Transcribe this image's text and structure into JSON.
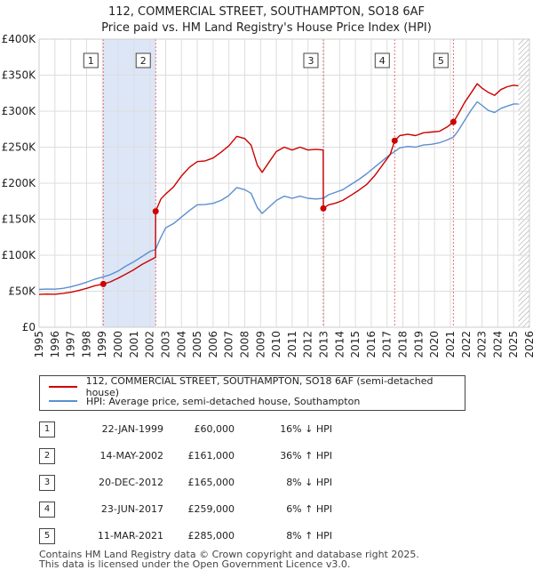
{
  "titles": {
    "line1": "112, COMMERCIAL STREET, SOUTHAMPTON, SO18 6AF",
    "line2": "Price paid vs. HM Land Registry's House Price Index (HPI)"
  },
  "chart_data": {
    "type": "line",
    "title": "112, COMMERCIAL STREET, SOUTHAMPTON, SO18 6AF — Price paid vs. HM Land Registry's House Price Index (HPI)",
    "xlabel": "",
    "ylabel": "",
    "xlim": [
      1995,
      2026
    ],
    "ylim": [
      0,
      400000
    ],
    "y_ticks": [
      0,
      50000,
      100000,
      150000,
      200000,
      250000,
      300000,
      350000,
      400000
    ],
    "y_tick_labels": [
      "£0",
      "£50K",
      "£100K",
      "£150K",
      "£200K",
      "£250K",
      "£300K",
      "£350K",
      "£400K"
    ],
    "x_ticks": [
      1995,
      1996,
      1997,
      1998,
      1999,
      2000,
      2001,
      2002,
      2003,
      2004,
      2005,
      2006,
      2007,
      2008,
      2009,
      2010,
      2011,
      2012,
      2013,
      2014,
      2015,
      2016,
      2017,
      2018,
      2019,
      2020,
      2021,
      2022,
      2023,
      2024,
      2025,
      2026
    ],
    "grid": true,
    "colors": {
      "property": "#cc0000",
      "hpi": "#5b8fd0",
      "shade": "#dde6f7",
      "vline": "#e07070",
      "hatch": "#999999"
    },
    "series": [
      {
        "name": "112, COMMERCIAL STREET, SOUTHAMPTON, SO18 6AF (semi-detached house)",
        "color": "#cc0000",
        "points": [
          [
            1995.0,
            45500
          ],
          [
            1995.5,
            46000
          ],
          [
            1996.0,
            45800
          ],
          [
            1996.5,
            47000
          ],
          [
            1997.0,
            48500
          ],
          [
            1997.5,
            51000
          ],
          [
            1998.0,
            54000
          ],
          [
            1998.5,
            57500
          ],
          [
            1999.06,
            60000
          ],
          [
            1999.5,
            63000
          ],
          [
            2000.0,
            68000
          ],
          [
            2000.5,
            74000
          ],
          [
            2001.0,
            80000
          ],
          [
            2001.5,
            87000
          ],
          [
            2002.0,
            93000
          ],
          [
            2002.36,
            97000
          ],
          [
            2002.37,
            161000
          ],
          [
            2002.7,
            178000
          ],
          [
            2003.0,
            185000
          ],
          [
            2003.5,
            195000
          ],
          [
            2004.0,
            210000
          ],
          [
            2004.5,
            222000
          ],
          [
            2005.0,
            230000
          ],
          [
            2005.5,
            231000
          ],
          [
            2006.0,
            235000
          ],
          [
            2006.5,
            243000
          ],
          [
            2007.0,
            252000
          ],
          [
            2007.5,
            265000
          ],
          [
            2008.0,
            262000
          ],
          [
            2008.4,
            253000
          ],
          [
            2008.8,
            225000
          ],
          [
            2009.1,
            215000
          ],
          [
            2009.5,
            228000
          ],
          [
            2010.0,
            244000
          ],
          [
            2010.5,
            250000
          ],
          [
            2011.0,
            246000
          ],
          [
            2011.5,
            250000
          ],
          [
            2012.0,
            246000
          ],
          [
            2012.5,
            247000
          ],
          [
            2012.96,
            246000
          ],
          [
            2012.97,
            165000
          ],
          [
            2013.3,
            170000
          ],
          [
            2013.7,
            172000
          ],
          [
            2014.2,
            176000
          ],
          [
            2014.7,
            183000
          ],
          [
            2015.2,
            190000
          ],
          [
            2015.7,
            198000
          ],
          [
            2016.2,
            210000
          ],
          [
            2016.7,
            225000
          ],
          [
            2017.2,
            240000
          ],
          [
            2017.48,
            259000
          ],
          [
            2017.8,
            266000
          ],
          [
            2018.3,
            268000
          ],
          [
            2018.8,
            266000
          ],
          [
            2019.3,
            270000
          ],
          [
            2019.8,
            271000
          ],
          [
            2020.3,
            272000
          ],
          [
            2020.8,
            278000
          ],
          [
            2021.19,
            285000
          ],
          [
            2021.5,
            296000
          ],
          [
            2021.9,
            312000
          ],
          [
            2022.3,
            325000
          ],
          [
            2022.7,
            338000
          ],
          [
            2023.0,
            332000
          ],
          [
            2023.4,
            326000
          ],
          [
            2023.8,
            322000
          ],
          [
            2024.2,
            330000
          ],
          [
            2024.6,
            334000
          ],
          [
            2025.0,
            336000
          ],
          [
            2025.3,
            335000
          ]
        ]
      },
      {
        "name": "HPI: Average price, semi-detached house, Southampton",
        "color": "#5b8fd0",
        "points": [
          [
            1995.0,
            52500
          ],
          [
            1995.5,
            53000
          ],
          [
            1996.0,
            52800
          ],
          [
            1996.5,
            54000
          ],
          [
            1997.0,
            56000
          ],
          [
            1997.5,
            59000
          ],
          [
            1998.0,
            62500
          ],
          [
            1998.5,
            66500
          ],
          [
            1999.06,
            70000
          ],
          [
            1999.5,
            73000
          ],
          [
            2000.0,
            78000
          ],
          [
            2000.5,
            85000
          ],
          [
            2001.0,
            91000
          ],
          [
            2001.5,
            98000
          ],
          [
            2002.0,
            105000
          ],
          [
            2002.36,
            108000
          ],
          [
            2002.7,
            125000
          ],
          [
            2003.0,
            138000
          ],
          [
            2003.5,
            144000
          ],
          [
            2004.0,
            153000
          ],
          [
            2004.5,
            162000
          ],
          [
            2005.0,
            170000
          ],
          [
            2005.5,
            170500
          ],
          [
            2006.0,
            172000
          ],
          [
            2006.5,
            176000
          ],
          [
            2007.0,
            183000
          ],
          [
            2007.5,
            194000
          ],
          [
            2008.0,
            191000
          ],
          [
            2008.4,
            186000
          ],
          [
            2008.8,
            166000
          ],
          [
            2009.1,
            158000
          ],
          [
            2009.5,
            166000
          ],
          [
            2010.0,
            176000
          ],
          [
            2010.5,
            182000
          ],
          [
            2011.0,
            179000
          ],
          [
            2011.5,
            182000
          ],
          [
            2012.0,
            179000
          ],
          [
            2012.5,
            178000
          ],
          [
            2012.97,
            179000
          ],
          [
            2013.3,
            184000
          ],
          [
            2013.7,
            187000
          ],
          [
            2014.2,
            191000
          ],
          [
            2014.7,
            198000
          ],
          [
            2015.2,
            205000
          ],
          [
            2015.7,
            213000
          ],
          [
            2016.2,
            222000
          ],
          [
            2016.7,
            231000
          ],
          [
            2017.2,
            240000
          ],
          [
            2017.48,
            244000
          ],
          [
            2017.8,
            249000
          ],
          [
            2018.3,
            251000
          ],
          [
            2018.8,
            250000
          ],
          [
            2019.3,
            253000
          ],
          [
            2019.8,
            254000
          ],
          [
            2020.3,
            256000
          ],
          [
            2020.8,
            260000
          ],
          [
            2021.19,
            264000
          ],
          [
            2021.5,
            273000
          ],
          [
            2021.9,
            287000
          ],
          [
            2022.3,
            301000
          ],
          [
            2022.7,
            313000
          ],
          [
            2023.0,
            308000
          ],
          [
            2023.4,
            301000
          ],
          [
            2023.8,
            298000
          ],
          [
            2024.2,
            304000
          ],
          [
            2024.6,
            307000
          ],
          [
            2025.0,
            310000
          ],
          [
            2025.3,
            310000
          ]
        ]
      }
    ],
    "shaded_ranges": [
      [
        1999.06,
        2002.37
      ]
    ],
    "hatched_range": [
      2025.3,
      2026
    ],
    "sales": [
      {
        "label": "1",
        "x": 1999.06,
        "price": 60000
      },
      {
        "label": "2",
        "x": 2002.37,
        "price": 161000
      },
      {
        "label": "3",
        "x": 2012.97,
        "price": 165000
      },
      {
        "label": "4",
        "x": 2017.48,
        "price": 259000
      },
      {
        "label": "5",
        "x": 2021.19,
        "price": 285000
      }
    ]
  },
  "legend": {
    "property_label": "112, COMMERCIAL STREET, SOUTHAMPTON, SO18 6AF (semi-detached house)",
    "hpi_label": "HPI: Average price, semi-detached house, Southampton"
  },
  "transactions": [
    {
      "num": "1",
      "date": "22-JAN-1999",
      "price": "£60,000",
      "hpi": "16% ↓ HPI"
    },
    {
      "num": "2",
      "date": "14-MAY-2002",
      "price": "£161,000",
      "hpi": "36% ↑ HPI"
    },
    {
      "num": "3",
      "date": "20-DEC-2012",
      "price": "£165,000",
      "hpi": "8% ↓ HPI"
    },
    {
      "num": "4",
      "date": "23-JUN-2017",
      "price": "£259,000",
      "hpi": "6% ↑ HPI"
    },
    {
      "num": "5",
      "date": "11-MAR-2021",
      "price": "£285,000",
      "hpi": "8% ↑ HPI"
    }
  ],
  "footer": {
    "line1": "Contains HM Land Registry data © Crown copyright and database right 2025.",
    "line2": "This data is licensed under the Open Government Licence v3.0."
  }
}
